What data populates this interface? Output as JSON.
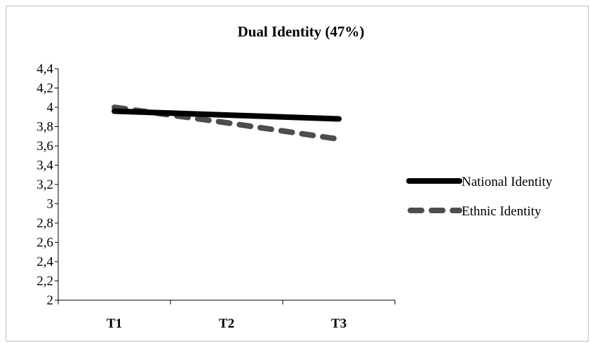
{
  "chart_data": {
    "type": "line",
    "title": "Dual Identity (47%)",
    "xlabel": "",
    "ylabel": "",
    "categories": [
      "T1",
      "T2",
      "T3"
    ],
    "ylim": [
      2,
      4.4
    ],
    "ytick_step": 0.2,
    "ytick_labels": [
      "2",
      "2,2",
      "2,4",
      "2,6",
      "2,8",
      "3",
      "3,2",
      "3,4",
      "3,6",
      "3,8",
      "4",
      "4,2",
      "4,4"
    ],
    "grid": false,
    "legend_position": "right",
    "series": [
      {
        "name": "National Identity",
        "values": [
          3.96,
          3.92,
          3.88
        ],
        "color": "#000000",
        "style": "solid"
      },
      {
        "name": "Ethnic Identity",
        "values": [
          4.0,
          3.84,
          3.67
        ],
        "color": "#4d4d4d",
        "style": "dashed"
      }
    ]
  }
}
